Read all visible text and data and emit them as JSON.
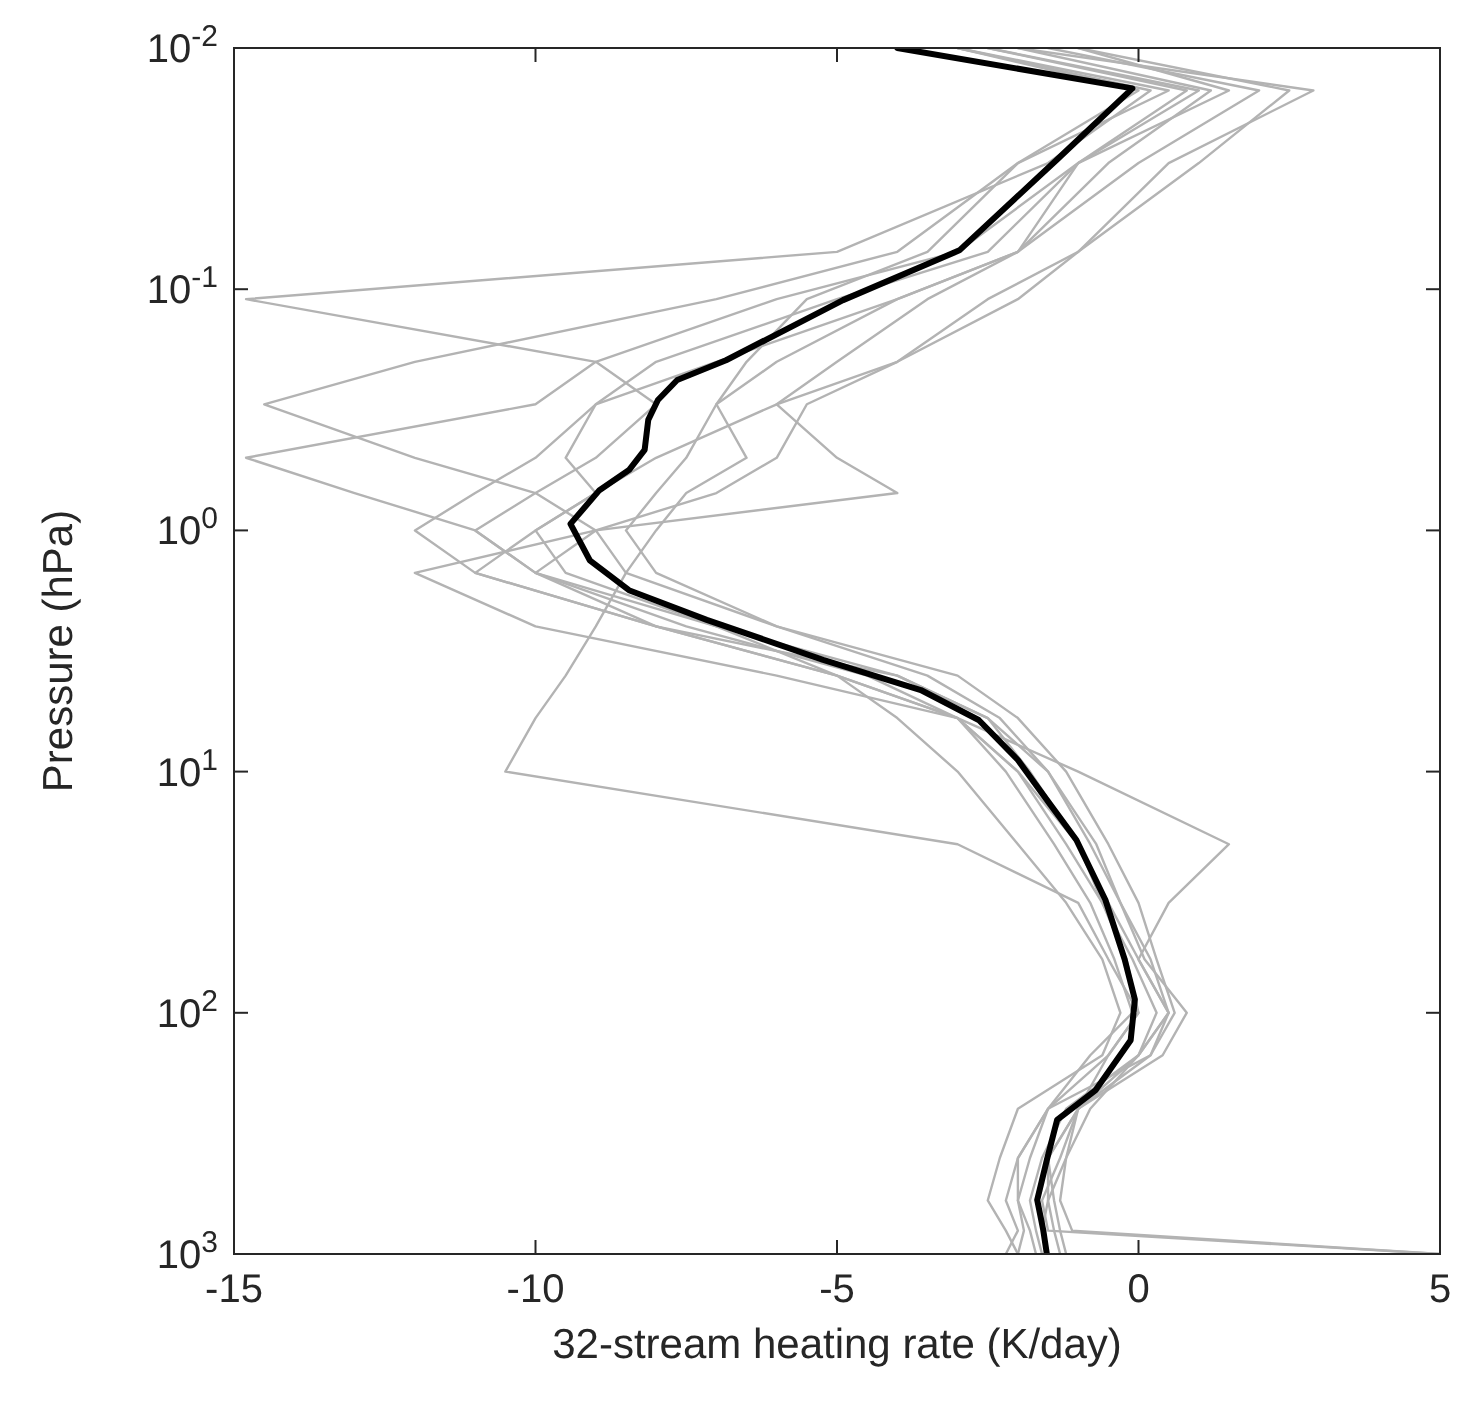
{
  "chart_data": {
    "type": "line",
    "xlabel": "32-stream heating rate (K/day)",
    "ylabel": "Pressure (hPa)",
    "log": "y",
    "xlim": [
      -15,
      5
    ],
    "xticks": [
      -15,
      -10,
      -5,
      0,
      5
    ],
    "ylim": [
      1000,
      0.01
    ],
    "yticks": [
      {
        "value": 0.01,
        "label": "10$^{-2}$"
      },
      {
        "value": 0.1,
        "label": "10$^{-1}$"
      },
      {
        "value": 1,
        "label": "10$^{0}$"
      },
      {
        "value": 10,
        "label": "10$^{1}$"
      },
      {
        "value": 100,
        "label": "10$^{2}$"
      },
      {
        "value": 1000,
        "label": "10$^{3}$"
      }
    ],
    "series": [
      {
        "color": "#b3b3b3",
        "x": [
          -2,
          2.9,
          0.5,
          -1,
          -2.5,
          -4,
          -6,
          -8,
          -9,
          -10,
          -11,
          -8,
          -5,
          -3,
          -2,
          -1.2,
          -0.6,
          -0.1,
          0.3,
          0,
          -1,
          -1.3,
          -1.6,
          -1.5,
          5
        ],
        "values": [
          0.01,
          0.015,
          0.03,
          0.07,
          0.11,
          0.2,
          0.3,
          0.5,
          0.7,
          1,
          1.5,
          2.5,
          4,
          6,
          10,
          20,
          35,
          60,
          100,
          150,
          250,
          400,
          600,
          800,
          1000
        ]
      },
      {
        "color": "#b3b3b3",
        "x": [
          -1,
          1.5,
          -1,
          -2,
          -4,
          -7,
          -9,
          -10,
          -11,
          -12,
          -11,
          -8,
          -5,
          -3,
          -2,
          -1,
          -0.5,
          0,
          0.5,
          0.2,
          -1.5,
          -2,
          -2,
          -1.8,
          -1.7
        ],
        "values": [
          0.01,
          0.015,
          0.03,
          0.07,
          0.11,
          0.2,
          0.3,
          0.5,
          0.7,
          1,
          1.5,
          2.5,
          4,
          6,
          10,
          20,
          35,
          60,
          100,
          150,
          250,
          400,
          600,
          800,
          1000
        ]
      },
      {
        "color": "#b3b3b3",
        "x": [
          -3,
          0.5,
          -2,
          -4,
          -7,
          -12,
          -14.5,
          -12,
          -10,
          -9,
          -8.5,
          -6,
          -3.5,
          -2.3,
          -1.5,
          -0.8,
          -0.3,
          0.2,
          0.5,
          0,
          -0.8,
          -1.2,
          -1.5,
          -1.4,
          -1.3
        ],
        "values": [
          0.01,
          0.015,
          0.03,
          0.07,
          0.11,
          0.2,
          0.3,
          0.5,
          0.7,
          1,
          1.5,
          2.5,
          4,
          6,
          10,
          20,
          35,
          60,
          100,
          150,
          250,
          400,
          600,
          800,
          1000
        ]
      },
      {
        "color": "#b3b3b3",
        "x": [
          -2.5,
          1,
          -1,
          -3,
          -6,
          -9,
          -10,
          -14.8,
          -13,
          -11,
          -10,
          -7,
          -4,
          -2.5,
          -1.8,
          -1,
          -0.6,
          -0.2,
          0,
          -0.5,
          -1.5,
          -1.8,
          -2,
          -1.9,
          -2
        ],
        "values": [
          0.01,
          0.015,
          0.03,
          0.07,
          0.11,
          0.2,
          0.3,
          0.5,
          0.7,
          1,
          1.5,
          2.5,
          4,
          6,
          10,
          20,
          35,
          60,
          100,
          150,
          250,
          400,
          600,
          800,
          1000
        ]
      },
      {
        "color": "#b3b3b3",
        "x": [
          -1.5,
          2,
          0,
          -2,
          -4,
          -6,
          -7,
          -7.5,
          -8,
          -8.5,
          -8,
          -6,
          -3,
          -2,
          -1.2,
          -0.5,
          0,
          0.3,
          0.6,
          0.2,
          -1,
          -1.5,
          -1.4,
          -1.3,
          -1.2
        ],
        "values": [
          0.01,
          0.015,
          0.03,
          0.07,
          0.11,
          0.2,
          0.3,
          0.5,
          0.7,
          1,
          1.5,
          2.5,
          4,
          6,
          10,
          20,
          35,
          60,
          100,
          150,
          250,
          400,
          600,
          800,
          1000
        ]
      },
      {
        "color": "#b3b3b3",
        "x": [
          -3,
          0,
          -2,
          -3.5,
          -5.5,
          -6.5,
          -7,
          -6.5,
          -7.5,
          -8,
          -8.5,
          -9,
          -9.5,
          -10,
          -10.5,
          -3,
          -1,
          -0.5,
          0,
          -0.5,
          -1,
          -1.5,
          -1.5,
          -1.6,
          -1.5
        ],
        "values": [
          0.01,
          0.015,
          0.03,
          0.07,
          0.11,
          0.2,
          0.3,
          0.5,
          0.7,
          1,
          1.5,
          2.5,
          4,
          6,
          10,
          20,
          35,
          60,
          100,
          150,
          250,
          400,
          600,
          800,
          1000
        ]
      },
      {
        "color": "#b3b3b3",
        "x": [
          -2,
          1.2,
          -0.5,
          -2,
          -3.5,
          -5,
          -6,
          -5,
          -4,
          -9,
          -12,
          -10,
          -6,
          -3,
          -1,
          1.5,
          0.5,
          0,
          0.5,
          0,
          -1.2,
          -1.6,
          -1.8,
          -1.7,
          -1.6
        ],
        "values": [
          0.01,
          0.015,
          0.03,
          0.07,
          0.11,
          0.2,
          0.3,
          0.5,
          0.7,
          1,
          1.5,
          2.5,
          4,
          6,
          10,
          20,
          35,
          60,
          100,
          150,
          250,
          400,
          600,
          800,
          1000
        ]
      },
      {
        "color": "#b3b3b3",
        "x": [
          -3,
          0.2,
          -1.5,
          -5,
          -14.8,
          -9,
          -8,
          -9,
          -10,
          -11,
          -10,
          -7.5,
          -4.5,
          -3,
          -2.2,
          -1.4,
          -0.8,
          -0.4,
          -0.1,
          -0.8,
          -1.5,
          -2,
          -2.2,
          -2,
          -2.2
        ],
        "values": [
          0.01,
          0.015,
          0.03,
          0.07,
          0.11,
          0.2,
          0.3,
          0.5,
          0.7,
          1,
          1.5,
          2.5,
          4,
          6,
          10,
          20,
          35,
          60,
          100,
          150,
          250,
          400,
          600,
          800,
          1000
        ]
      },
      {
        "color": "#b3b3b3",
        "x": [
          -1,
          2.5,
          1,
          -1,
          -2,
          -4,
          -5.5,
          -6,
          -7,
          -9,
          -10,
          -8,
          -4,
          -2.5,
          -1.5,
          -0.7,
          -0.3,
          0.1,
          0.8,
          0.4,
          -1,
          -1.2,
          -1.3,
          -1.1,
          5
        ],
        "values": [
          0.01,
          0.015,
          0.03,
          0.07,
          0.11,
          0.2,
          0.3,
          0.5,
          0.7,
          1,
          1.5,
          2.5,
          4,
          6,
          10,
          20,
          35,
          60,
          100,
          150,
          250,
          400,
          600,
          800,
          1000
        ]
      },
      {
        "color": "#b3b3b3",
        "x": [
          -2.5,
          0.8,
          -1,
          -2.5,
          -5,
          -8,
          -9,
          -9.5,
          -9,
          -10,
          -9.5,
          -7,
          -5,
          -4,
          -3,
          -2,
          -1.2,
          -0.6,
          -0.3,
          -0.6,
          -2,
          -2.3,
          -2.5,
          -2.2,
          -2
        ],
        "values": [
          0.01,
          0.015,
          0.03,
          0.07,
          0.11,
          0.2,
          0.3,
          0.5,
          0.7,
          1,
          1.5,
          2.5,
          4,
          6,
          10,
          20,
          35,
          60,
          100,
          150,
          250,
          400,
          600,
          800,
          1000
        ]
      },
      {
        "color": "#000000",
        "x": [
          -4,
          -0.1,
          -1.35,
          -2.97,
          -4.9,
          -6.84,
          -7.65,
          -7.97,
          -8.13,
          -8.19,
          -8.45,
          -8.94,
          -9.42,
          -9.1,
          -8.45,
          -7.16,
          -5.23,
          -3.61,
          -2.65,
          -2,
          -1.52,
          -1.03,
          -0.55,
          -0.23,
          -0.06,
          -0.13,
          -0.71,
          -1.35,
          -1.52,
          -1.68,
          -1.58,
          -1.52
        ],
        "values": [
          0.01,
          0.0147,
          0.029,
          0.069,
          0.111,
          0.197,
          0.238,
          0.288,
          0.348,
          0.464,
          0.562,
          0.681,
          0.94,
          1.33,
          1.77,
          2.35,
          3.44,
          4.59,
          6.11,
          8.95,
          13.1,
          19.2,
          34,
          60,
          88,
          130,
          209,
          278,
          408,
          597,
          795,
          1000
        ]
      }
    ]
  }
}
